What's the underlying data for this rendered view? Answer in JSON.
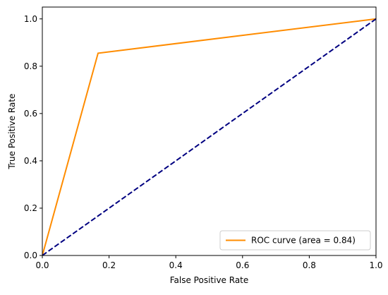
{
  "chart_data": {
    "type": "line",
    "xlabel": "False Positive Rate",
    "ylabel": "True Positive Rate",
    "xlim": [
      0.0,
      1.0
    ],
    "ylim": [
      0.0,
      1.05
    ],
    "xticks": [
      0.0,
      0.2,
      0.4,
      0.6,
      0.8,
      1.0
    ],
    "yticks": [
      0.0,
      0.2,
      0.4,
      0.6,
      0.8,
      1.0
    ],
    "xtick_labels": [
      "0.0",
      "0.2",
      "0.4",
      "0.6",
      "0.8",
      "1.0"
    ],
    "ytick_labels": [
      "0.0",
      "0.2",
      "0.4",
      "0.6",
      "0.8",
      "1.0"
    ],
    "grid": false,
    "legend_position": "lower right",
    "series": [
      {
        "name": "ROC curve (area = 0.84)",
        "color": "#ff8c00",
        "style": "solid",
        "x": [
          0.0,
          0.167,
          1.0
        ],
        "y": [
          0.0,
          0.855,
          1.0
        ]
      },
      {
        "color": "#000080",
        "style": "dashed",
        "x": [
          0.0,
          1.0
        ],
        "y": [
          0.0,
          1.0
        ]
      }
    ]
  }
}
